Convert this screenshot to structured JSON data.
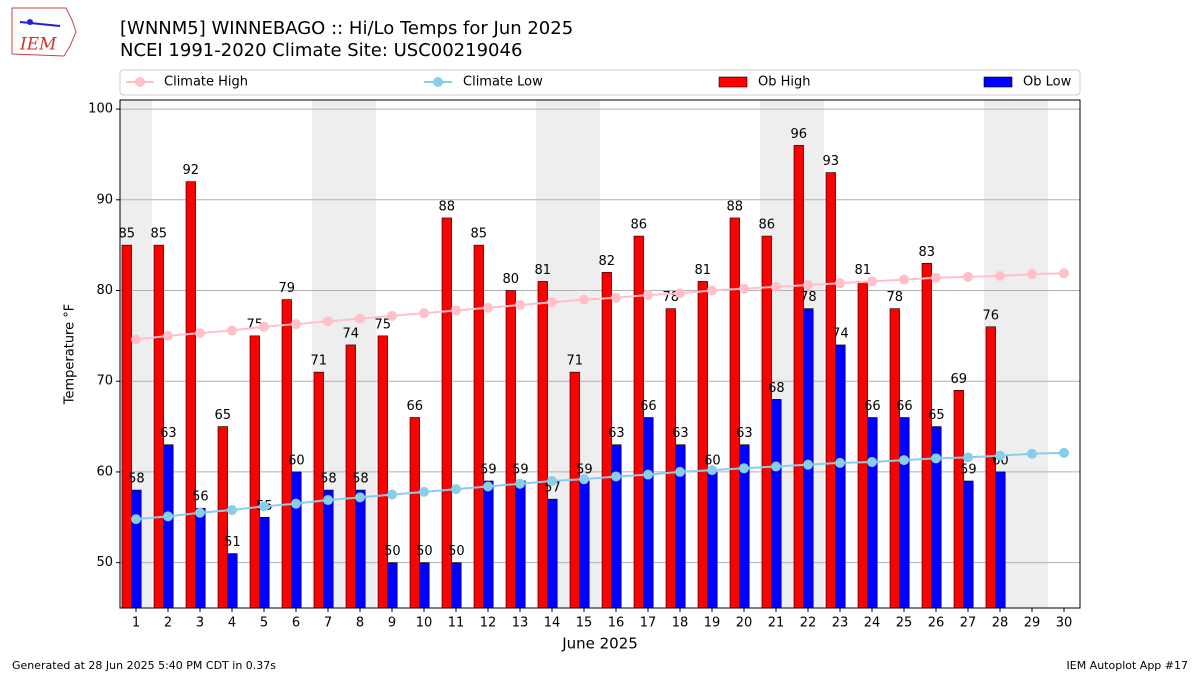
{
  "logo_text": "IEM",
  "footer": {
    "left": "Generated at 28 Jun 2025 5:40 PM CDT in 0.37s",
    "right": "IEM Autoplot App #17"
  },
  "chart_data": {
    "type": "bar",
    "title": "[WNNM5] WINNEBAGO :: Hi/Lo Temps for Jun 2025",
    "subtitle": "NCEI 1991-2020 Climate Site: USC00219046",
    "xlabel": "June 2025",
    "ylabel": "Temperature °F",
    "x": [
      1,
      2,
      3,
      4,
      5,
      6,
      7,
      8,
      9,
      10,
      11,
      12,
      13,
      14,
      15,
      16,
      17,
      18,
      19,
      20,
      21,
      22,
      23,
      24,
      25,
      26,
      27,
      28,
      29,
      30
    ],
    "xlim": [
      0.5,
      30.5
    ],
    "xticks": [
      1,
      2,
      3,
      4,
      5,
      6,
      7,
      8,
      9,
      10,
      11,
      12,
      13,
      14,
      15,
      16,
      17,
      18,
      19,
      20,
      21,
      22,
      23,
      24,
      25,
      26,
      27,
      28,
      29,
      30
    ],
    "ylim": [
      45,
      101
    ],
    "yticks": [
      50,
      60,
      70,
      80,
      90,
      100
    ],
    "grid": true,
    "weekend_days": [
      1,
      7,
      8,
      14,
      15,
      21,
      22,
      28,
      29
    ],
    "series": [
      {
        "name": "Climate High",
        "kind": "line",
        "color": "#ffc0cb",
        "values": [
          74.6,
          75.0,
          75.3,
          75.6,
          76.0,
          76.3,
          76.6,
          76.9,
          77.2,
          77.5,
          77.8,
          78.1,
          78.4,
          78.7,
          79.0,
          79.2,
          79.5,
          79.7,
          80.0,
          80.2,
          80.4,
          80.6,
          80.8,
          81.0,
          81.2,
          81.4,
          81.5,
          81.6,
          81.8,
          81.9
        ]
      },
      {
        "name": "Climate Low",
        "kind": "line",
        "color": "#87ceeb",
        "values": [
          54.8,
          55.1,
          55.5,
          55.8,
          56.2,
          56.5,
          56.9,
          57.2,
          57.5,
          57.8,
          58.1,
          58.4,
          58.7,
          59.0,
          59.2,
          59.5,
          59.7,
          60.0,
          60.2,
          60.4,
          60.6,
          60.8,
          61.0,
          61.1,
          61.3,
          61.5,
          61.6,
          61.8,
          62.0,
          62.1
        ]
      },
      {
        "name": "Ob High",
        "kind": "bar",
        "color": "#ff0000",
        "values": [
          85,
          85,
          92,
          65,
          75,
          79,
          71,
          74,
          75,
          66,
          88,
          85,
          80,
          81,
          71,
          82,
          86,
          78,
          81,
          88,
          86,
          96,
          93,
          81,
          78,
          83,
          69,
          76,
          null,
          null
        ]
      },
      {
        "name": "Ob Low",
        "kind": "bar",
        "color": "#0000ff",
        "values": [
          58,
          63,
          56,
          51,
          55,
          60,
          58,
          58,
          50,
          50,
          50,
          59,
          59,
          57,
          59,
          63,
          66,
          63,
          60,
          63,
          68,
          78,
          74,
          66,
          66,
          65,
          59,
          60,
          null,
          null
        ]
      }
    ]
  }
}
